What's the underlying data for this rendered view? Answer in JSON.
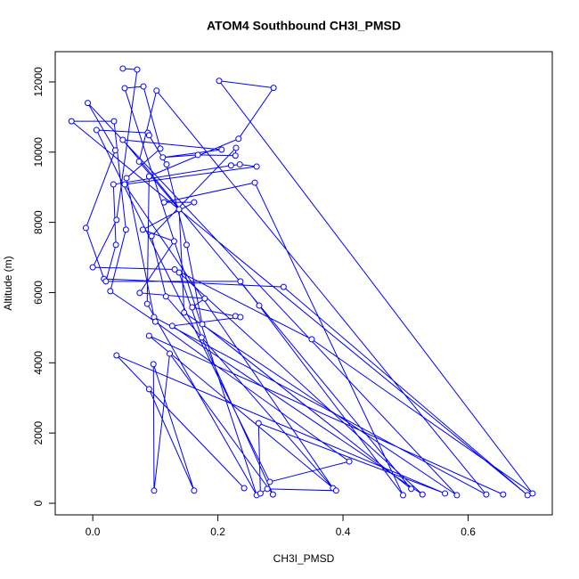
{
  "chart_data": {
    "type": "line",
    "title": "ATOM4 Southbound CH3I_PMSD",
    "x_label": "CH3I_PMSD",
    "y_label": "Altitude (m)",
    "color": "#0000ff",
    "markers": true,
    "x": [
      0.048,
      0.071,
      0.038,
      0.0,
      0.131,
      0.35,
      0.703,
      0.202,
      0.289,
      0.233,
      0.09,
      0.087,
      0.262,
      0.051,
      0.081,
      0.108,
      0.054,
      0.098,
      0.629,
      0.102,
      0.074,
      0.138,
      0.146,
      0.582,
      -0.008,
      0.036,
      -0.011,
      0.018,
      0.305,
      0.695,
      -0.034,
      0.034,
      0.053,
      0.028,
      0.1,
      0.41,
      0.283,
      0.006,
      0.088,
      0.09,
      0.118,
      0.15,
      0.175,
      0.509,
      0.048,
      0.206,
      0.112,
      0.168,
      0.228,
      0.229,
      0.094,
      0.117,
      0.384,
      0.051,
      0.262,
      0.235,
      0.221,
      0.033,
      0.037,
      0.021,
      0.236,
      0.266,
      0.496,
      0.259,
      0.114,
      0.162,
      0.08,
      0.13,
      0.075,
      0.179,
      0.159,
      0.228,
      0.236,
      0.127,
      0.527,
      0.138,
      0.174,
      0.288,
      0.123,
      0.098,
      0.097,
      0.162,
      0.09,
      0.242,
      0.038,
      0.563,
      0.265,
      0.268,
      0.279,
      0.389,
      0.09,
      0.656
    ],
    "values": [
      12380,
      12350,
      8070,
      6720,
      6660,
      4670,
      280,
      12030,
      11830,
      10380,
      9310,
      5680,
      230,
      11820,
      11870,
      10100,
      9260,
      5300,
      250,
      11750,
      9730,
      8370,
      5430,
      230,
      11400,
      10050,
      7840,
      6390,
      6160,
      230,
      10880,
      10880,
      7790,
      6040,
      5170,
      1190,
      610,
      10630,
      10550,
      10480,
      9650,
      7360,
      5100,
      410,
      10350,
      10070,
      9850,
      9920,
      9900,
      10120,
      7610,
      5890,
      430,
      9080,
      9590,
      9650,
      9620,
      9080,
      7360,
      6320,
      6320,
      5630,
      230,
      9130,
      8570,
      8570,
      7790,
      7460,
      5990,
      5830,
      5580,
      5330,
      5300,
      5050,
      250,
      6570,
      4720,
      250,
      4260,
      360,
      3960,
      360,
      3250,
      430,
      4210,
      280,
      2280,
      280,
      410,
      360,
      4770,
      250
    ],
    "xlim": [
      -0.06,
      0.7345
    ],
    "ylim": [
      -330,
      12861
    ],
    "xticks": [
      {
        "value": 0,
        "label": "0.0"
      },
      0.2,
      0.4,
      0.6
    ],
    "yticks": [
      0,
      2000,
      4000,
      6000,
      8000,
      10000,
      12000
    ]
  }
}
